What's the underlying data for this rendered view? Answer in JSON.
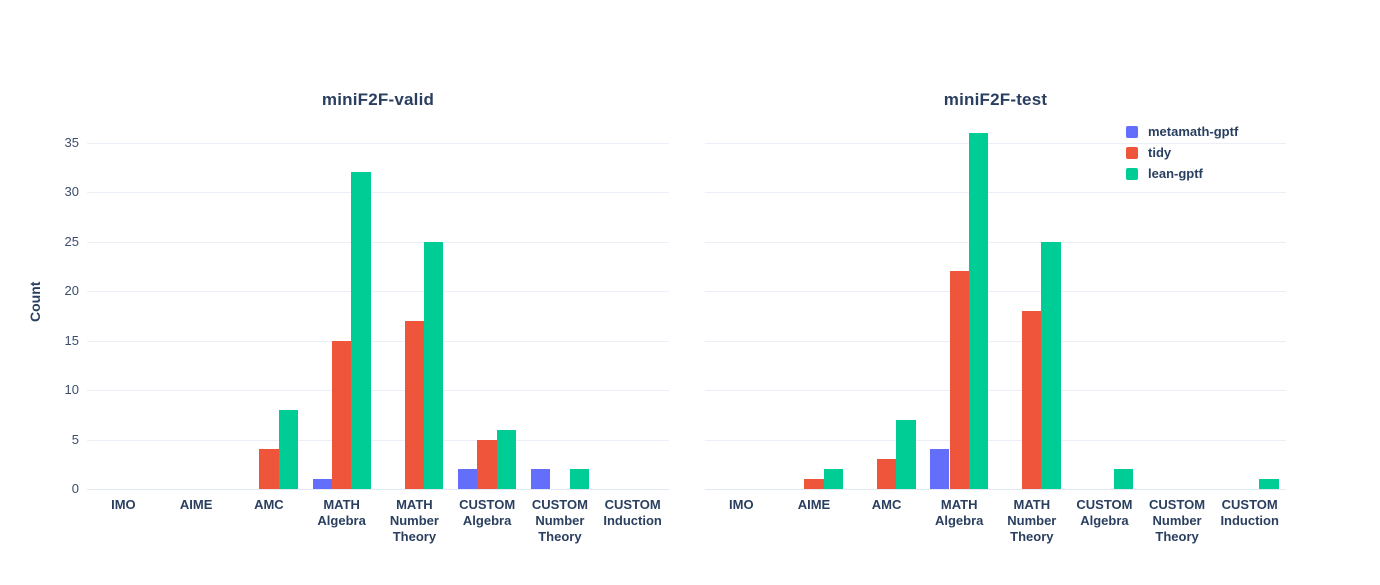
{
  "figure": {
    "background": "#ffffff",
    "text_color": "#2a3f5f",
    "gridline_color": "#ebf0f8"
  },
  "legend": {
    "items": [
      {
        "label": "metamath-gptf",
        "color": "#636efa"
      },
      {
        "label": "tidy",
        "color": "#ef553b"
      },
      {
        "label": "lean-gptf",
        "color": "#00cc96"
      }
    ]
  },
  "chart_data": [
    {
      "type": "bar",
      "title": "miniF2F-valid",
      "ylabel": "Count",
      "xlabel": "",
      "categories": [
        "IMO",
        "AIME",
        "AMC",
        "MATH\nAlgebra",
        "MATH\nNumber\nTheory",
        "CUSTOM\nAlgebra",
        "CUSTOM\nNumber\nTheory",
        "CUSTOM\nInduction"
      ],
      "series": [
        {
          "name": "metamath-gptf",
          "color": "#636efa",
          "values": [
            0,
            0,
            0,
            1,
            0,
            2,
            2,
            0
          ]
        },
        {
          "name": "tidy",
          "color": "#ef553b",
          "values": [
            0,
            0,
            4,
            15,
            17,
            5,
            0,
            0
          ]
        },
        {
          "name": "lean-gptf",
          "color": "#00cc96",
          "values": [
            0,
            0,
            8,
            32,
            25,
            6,
            2,
            0
          ]
        }
      ],
      "yticks": [
        0,
        5,
        10,
        15,
        20,
        25,
        30,
        35
      ],
      "ylim": [
        0,
        37.9
      ],
      "grid": true,
      "legend_position": "top-right-outside"
    },
    {
      "type": "bar",
      "title": "miniF2F-test",
      "ylabel": "",
      "xlabel": "",
      "categories": [
        "IMO",
        "AIME",
        "AMC",
        "MATH\nAlgebra",
        "MATH\nNumber\nTheory",
        "CUSTOM\nAlgebra",
        "CUSTOM\nNumber\nTheory",
        "CUSTOM\nInduction"
      ],
      "series": [
        {
          "name": "metamath-gptf",
          "color": "#636efa",
          "values": [
            0,
            0,
            0,
            4,
            0,
            0,
            0,
            0
          ]
        },
        {
          "name": "tidy",
          "color": "#ef553b",
          "values": [
            0,
            1,
            3,
            22,
            18,
            0,
            0,
            0
          ]
        },
        {
          "name": "lean-gptf",
          "color": "#00cc96",
          "values": [
            0,
            2,
            7,
            36,
            25,
            2,
            0,
            1
          ]
        }
      ],
      "yticks": [
        0,
        5,
        10,
        15,
        20,
        25,
        30,
        35
      ],
      "ylim": [
        0,
        37.9
      ],
      "grid": true,
      "legend_position": "none"
    }
  ]
}
